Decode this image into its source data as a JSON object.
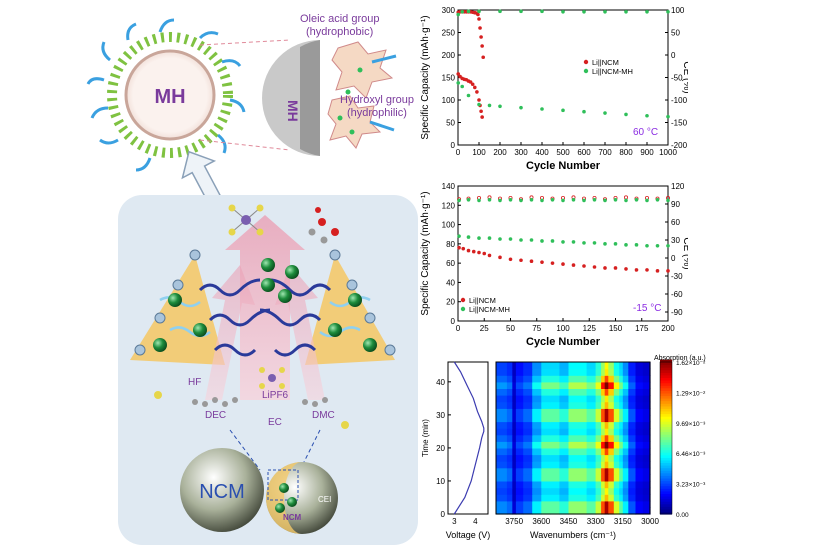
{
  "schematic": {
    "mh_label": "MH",
    "mh_half_label": "MH",
    "oleic_label_1": "Oleic acid group",
    "oleic_label_2": "(hydrophobic)",
    "hydroxyl_label_1": "Hydroxyl group",
    "hydroxyl_label_2": "(hydrophilic)",
    "hf_label": "HF",
    "dec_label": "DEC",
    "lipf6_label": "LiPF6",
    "ec_label": "EC",
    "dmc_label": "DMC",
    "ncm_label": "NCM",
    "ncm_small_label": "NCM",
    "cei_label": "CEI",
    "colors": {
      "panel_bg": "#dfe9f2",
      "yellow": "#f4c96a",
      "arrow_pink": "#f2b6c4",
      "green_sphere": "#1d8c3c",
      "chain_blue": "#2a3a9a",
      "text_purple": "#7a3b9c"
    }
  },
  "chart_data": [
    {
      "type": "scatter",
      "xlabel": "Cycle Number",
      "ylabel": "Specific Capacity (mAh·g⁻¹)",
      "y2label": "CE (%)",
      "xlim": [
        0,
        1000
      ],
      "ylim": [
        0,
        300
      ],
      "y2lim": [
        -200,
        100
      ],
      "xticks": [
        0,
        100,
        200,
        300,
        400,
        500,
        600,
        700,
        800,
        900,
        1000
      ],
      "yticks": [
        0,
        50,
        100,
        150,
        200,
        250,
        300
      ],
      "y2ticks": [
        100,
        50,
        0,
        -50,
        -100,
        -150,
        -200
      ],
      "annotation": "60 °C",
      "legend": [
        "Li||NCM",
        "Li||NCM-MH"
      ],
      "legend_position": "right-middle",
      "series": [
        {
          "name": "Li||NCM",
          "axis": "capacity",
          "color": "#d62020",
          "x": [
            1,
            10,
            20,
            30,
            40,
            50,
            60,
            70,
            80,
            90,
            100,
            105,
            110,
            115
          ],
          "y": [
            158,
            152,
            148,
            146,
            145,
            142,
            140,
            135,
            128,
            118,
            100,
            88,
            75,
            62
          ]
        },
        {
          "name": "Li||NCM",
          "axis": "ce",
          "color": "#d62020",
          "x": [
            1,
            10,
            20,
            30,
            40,
            50,
            60,
            70,
            80,
            90,
            95,
            100,
            105,
            110,
            115,
            120
          ],
          "y": [
            95,
            96,
            96,
            96,
            96,
            96,
            96,
            95,
            94,
            93,
            90,
            80,
            60,
            40,
            20,
            -5
          ]
        },
        {
          "name": "Li||NCM-MH",
          "axis": "capacity",
          "color": "#2fbf5a",
          "x": [
            1,
            20,
            50,
            100,
            150,
            200,
            300,
            400,
            500,
            600,
            700,
            800,
            900,
            1000
          ],
          "y": [
            138,
            130,
            110,
            90,
            88,
            86,
            83,
            80,
            77,
            74,
            71,
            68,
            65,
            63
          ]
        },
        {
          "name": "Li||NCM-MH",
          "axis": "ce",
          "color": "#2fbf5a",
          "x": [
            1,
            20,
            50,
            100,
            200,
            300,
            400,
            500,
            600,
            700,
            800,
            900,
            1000
          ],
          "y": [
            90,
            96,
            97,
            97,
            97,
            97,
            97,
            96,
            96,
            96,
            96,
            96,
            96
          ]
        }
      ]
    },
    {
      "type": "scatter",
      "xlabel": "Cycle Number",
      "ylabel": "Specific Capacity (mAh·g⁻¹)",
      "y2label": "CE (%)",
      "xlim": [
        0,
        200
      ],
      "ylim": [
        0,
        140
      ],
      "y2lim": [
        -105,
        120
      ],
      "xticks": [
        0,
        25,
        50,
        75,
        100,
        125,
        150,
        175,
        200
      ],
      "yticks": [
        0,
        20,
        40,
        60,
        80,
        100,
        120,
        140
      ],
      "y2ticks": [
        120,
        90,
        60,
        30,
        0,
        -30,
        -60,
        -90
      ],
      "annotation": "-15 °C",
      "legend": [
        "Li||NCM",
        "Li||NCM-MH"
      ],
      "legend_position": "bottom-left",
      "series": [
        {
          "name": "Li||NCM",
          "axis": "capacity",
          "color": "#d62020",
          "x": [
            1,
            5,
            10,
            15,
            20,
            25,
            30,
            40,
            50,
            60,
            70,
            80,
            90,
            100,
            110,
            120,
            130,
            140,
            150,
            160,
            170,
            180,
            190,
            200
          ],
          "y": [
            76,
            75,
            73,
            72,
            71,
            70,
            68,
            66,
            64,
            63,
            62,
            61,
            60,
            59,
            58,
            57,
            56,
            55,
            55,
            54,
            53,
            53,
            52,
            52
          ]
        },
        {
          "name": "Li||NCM",
          "axis": "ce",
          "color": "#d62020",
          "x": [
            1,
            10,
            20,
            30,
            40,
            50,
            60,
            70,
            80,
            90,
            100,
            110,
            120,
            130,
            140,
            150,
            160,
            170,
            180,
            190,
            200
          ],
          "y": [
            98,
            99,
            100,
            101,
            99,
            100,
            98,
            101,
            100,
            99,
            100,
            101,
            99,
            100,
            98,
            100,
            101,
            99,
            100,
            99,
            100
          ]
        },
        {
          "name": "Li||NCM-MH",
          "axis": "capacity",
          "color": "#2fbf5a",
          "x": [
            1,
            10,
            20,
            30,
            40,
            50,
            60,
            70,
            80,
            90,
            100,
            110,
            120,
            130,
            140,
            150,
            160,
            170,
            180,
            190,
            200
          ],
          "y": [
            88,
            87,
            86,
            86,
            85,
            85,
            84,
            84,
            83,
            83,
            82,
            82,
            81,
            81,
            80,
            80,
            79,
            79,
            78,
            78,
            78
          ]
        },
        {
          "name": "Li||NCM-MH",
          "axis": "ce",
          "color": "#2fbf5a",
          "x": [
            1,
            10,
            20,
            30,
            40,
            50,
            60,
            70,
            80,
            90,
            100,
            110,
            120,
            130,
            140,
            150,
            160,
            170,
            180,
            190,
            200
          ],
          "y": [
            96,
            97,
            96,
            97,
            96,
            97,
            96,
            97,
            96,
            97,
            96,
            97,
            96,
            97,
            96,
            97,
            96,
            97,
            96,
            97,
            96
          ]
        }
      ]
    },
    {
      "type": "line",
      "xlabel": "Voltage (V)",
      "ylabel": "Time (min)",
      "xlim": [
        2.7,
        4.6
      ],
      "ylim": [
        0,
        46
      ],
      "xticks": [
        3,
        4
      ],
      "yticks": [
        0,
        10,
        20,
        30,
        40
      ],
      "series": [
        {
          "name": "",
          "color": "#3b3bb0",
          "x": [
            3.0,
            3.5,
            3.8,
            4.0,
            4.2,
            4.3,
            4.35,
            4.4,
            4.4,
            4.3,
            4.1,
            3.9,
            3.6,
            3.3,
            3.0
          ],
          "y": [
            0,
            5,
            10,
            15,
            20,
            23,
            24,
            25,
            26,
            28,
            31,
            35,
            39,
            43,
            46
          ]
        }
      ]
    },
    {
      "type": "heatmap",
      "xlabel": "Wavenumbers (cm⁻¹)",
      "xlim": [
        3850,
        3000
      ],
      "ylim": [
        0,
        46
      ],
      "xticks": [
        3750,
        3600,
        3450,
        3300,
        3150,
        3000
      ],
      "yticks": [
        0,
        10,
        20,
        30,
        40
      ],
      "colorbar_title": "Absorption (a.u.)",
      "colorbar_ticks": [
        "1.62×10⁻²",
        "1.29×10⁻²",
        "9.69×10⁻³",
        "6.46×10⁻³",
        "3.23×10⁻³",
        "0.00"
      ],
      "bands_wavenumber": [
        3850,
        3790,
        3760,
        3740,
        3700,
        3650,
        3600,
        3550,
        3500,
        3450,
        3400,
        3350,
        3300,
        3270,
        3250,
        3230,
        3200,
        3170,
        3150,
        3120,
        3080,
        3040,
        3000
      ],
      "band_base_intensity": [
        0.25,
        0.22,
        0.08,
        0.18,
        0.22,
        0.35,
        0.45,
        0.45,
        0.4,
        0.5,
        0.5,
        0.45,
        0.55,
        0.75,
        0.9,
        0.75,
        0.55,
        0.45,
        0.35,
        0.2,
        0.12,
        0.1,
        0.08
      ],
      "hot_times_min": [
        2,
        12,
        21,
        30,
        39
      ]
    }
  ]
}
